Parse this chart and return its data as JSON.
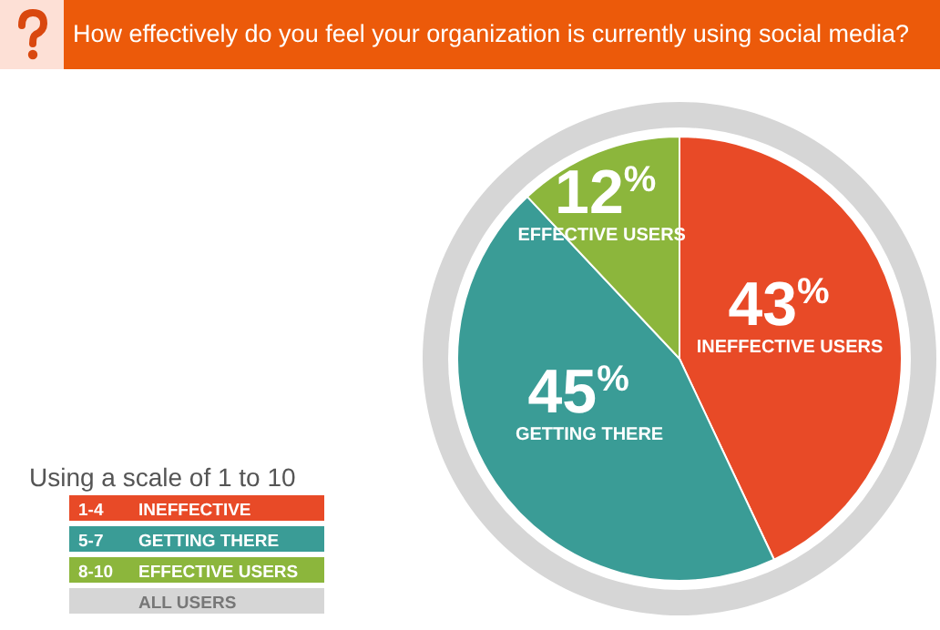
{
  "chart_data": {
    "type": "pie",
    "title": "How effectively do you feel your organization is currently using social media?",
    "legend_title": "Using a scale of 1 to 10",
    "categories": [
      "1-4 INEFFECTIVE",
      "5-7 GETTING THERE",
      "8-10 EFFECTIVE USERS",
      "ALL USERS"
    ],
    "values": [
      43,
      45,
      12,
      null
    ],
    "colors": [
      "#e84a27",
      "#3a9c96",
      "#8cb63c",
      "#d6d6d6"
    ],
    "value_labels": [
      "43$^{%}$",
      "45$^{%}$",
      "12$^{%}$",
      null
    ],
    "annotations": [
      {
        "text": "INEFFECTIVE USERS",
        "x": "1-4 INEFFECTIVE"
      },
      {
        "text": "GETTING THERE",
        "x": "5-7 GETTING THERE"
      },
      {
        "text": "EFFECTIVE USERS",
        "x": "8-10 EFFECTIVE USERS"
      }
    ]
  }
}
